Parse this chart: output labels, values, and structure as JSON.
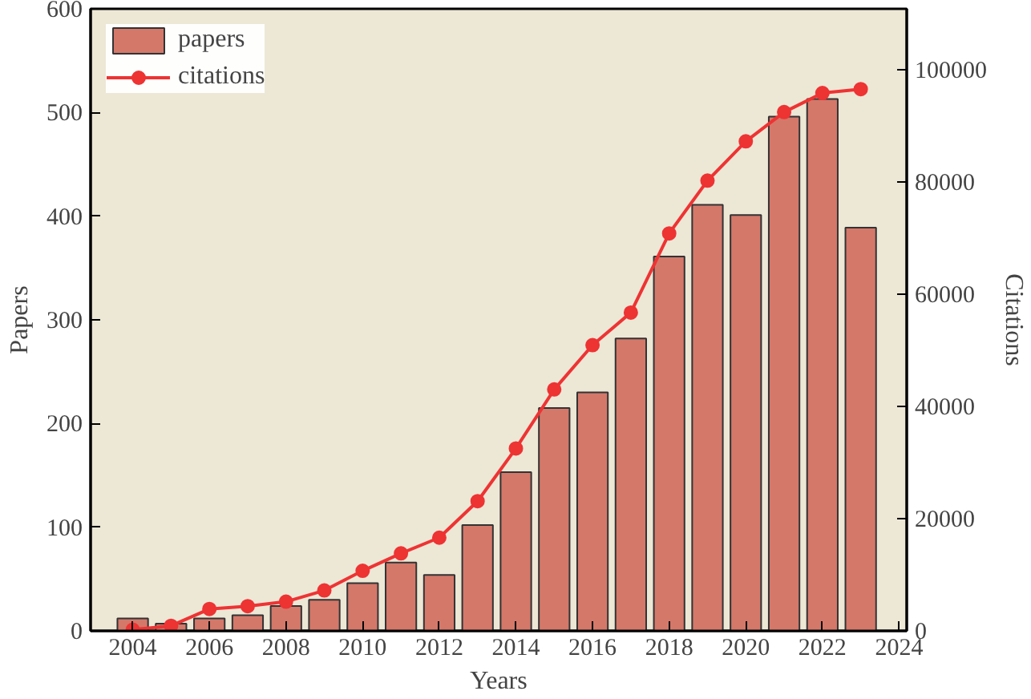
{
  "chart_data": {
    "type": "bar",
    "xlabel": "Years",
    "ylabel": "Papers",
    "y2label": "Citations",
    "x": [
      2004,
      2005,
      2006,
      2007,
      2008,
      2009,
      2010,
      2011,
      2012,
      2013,
      2014,
      2015,
      2016,
      2017,
      2018,
      2019,
      2020,
      2021,
      2022,
      2023
    ],
    "xlim": [
      2002.9,
      2024.2
    ],
    "xticks": [
      2004,
      2006,
      2008,
      2010,
      2012,
      2014,
      2016,
      2018,
      2020,
      2022,
      2024
    ],
    "ylim": [
      0,
      600
    ],
    "yticks": [
      0,
      100,
      200,
      300,
      400,
      500,
      600
    ],
    "y2lim": [
      0,
      110800
    ],
    "y2ticks": [
      0,
      20000,
      40000,
      60000,
      80000,
      100000
    ],
    "series": [
      {
        "name": "papers",
        "color": "#d4786a",
        "values": [
          12,
          7,
          12,
          15,
          24,
          30,
          46,
          66,
          54,
          102,
          153,
          215,
          230,
          282,
          361,
          411,
          401,
          496,
          513,
          389
        ]
      },
      {
        "name": "citations",
        "type": "line",
        "axis": "y2",
        "color": "#ee3333",
        "marker": "circle",
        "values": [
          200,
          900,
          3900,
          4400,
          5200,
          7200,
          10700,
          13800,
          16600,
          23100,
          32500,
          43000,
          50900,
          56700,
          70800,
          80200,
          87200,
          92400,
          95800,
          96500
        ]
      }
    ],
    "legend": "top left",
    "grid": false
  }
}
